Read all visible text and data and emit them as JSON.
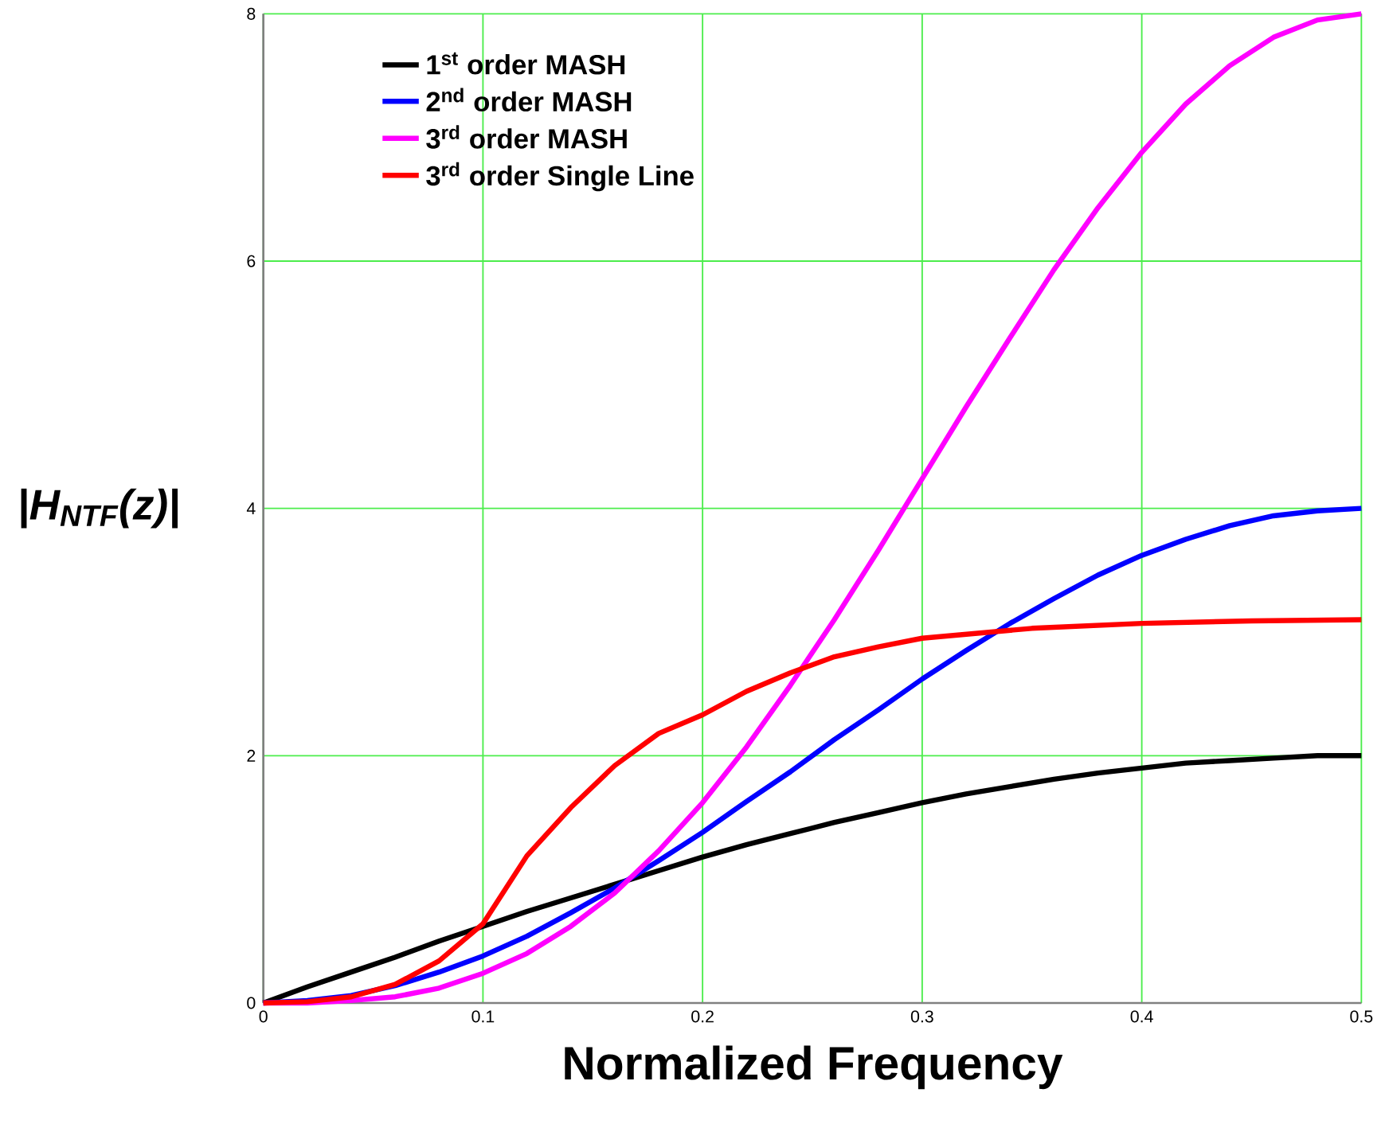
{
  "chart_data": {
    "type": "line",
    "xlabel": "Normalized Frequency",
    "ylabel": "|H$_{NTF}$(z)|",
    "x": [
      0,
      0.02,
      0.04,
      0.06,
      0.08,
      0.1,
      0.12,
      0.14,
      0.16,
      0.18,
      0.2,
      0.22,
      0.24,
      0.26,
      0.28,
      0.3,
      0.32,
      0.34,
      0.36,
      0.38,
      0.4,
      0.42,
      0.44,
      0.46,
      0.48,
      0.5
    ],
    "series": [
      {
        "name": "1$^{st}$ order MASH",
        "color": "#000000",
        "values": [
          0,
          0.13,
          0.25,
          0.37,
          0.5,
          0.62,
          0.74,
          0.85,
          0.96,
          1.07,
          1.18,
          1.28,
          1.37,
          1.46,
          1.54,
          1.62,
          1.69,
          1.75,
          1.81,
          1.86,
          1.9,
          1.94,
          1.96,
          1.98,
          2.0,
          2.0
        ]
      },
      {
        "name": "2$^{nd}$ order MASH",
        "color": "#0000ff",
        "values": [
          0,
          0.02,
          0.06,
          0.14,
          0.25,
          0.38,
          0.54,
          0.73,
          0.93,
          1.15,
          1.38,
          1.63,
          1.87,
          2.13,
          2.37,
          2.62,
          2.85,
          3.07,
          3.27,
          3.46,
          3.62,
          3.75,
          3.86,
          3.94,
          3.98,
          4.0
        ]
      },
      {
        "name": "3$^{rd}$ order MASH",
        "color": "#ff00ff",
        "values": [
          0,
          0.0,
          0.02,
          0.05,
          0.12,
          0.24,
          0.4,
          0.62,
          0.89,
          1.23,
          1.62,
          2.07,
          2.57,
          3.1,
          3.66,
          4.24,
          4.82,
          5.38,
          5.93,
          6.43,
          6.88,
          7.27,
          7.58,
          7.81,
          7.95,
          8.0
        ]
      },
      {
        "name": "3$^{rd}$ order Single Line",
        "color": "#ff0000",
        "x": [
          0,
          0.02,
          0.04,
          0.06,
          0.08,
          0.1,
          0.12,
          0.14,
          0.16,
          0.18,
          0.2,
          0.22,
          0.24,
          0.26,
          0.28,
          0.3,
          0.35,
          0.4,
          0.45,
          0.5
        ],
        "values": [
          0,
          0.01,
          0.05,
          0.15,
          0.34,
          0.64,
          1.19,
          1.58,
          1.92,
          2.18,
          2.33,
          2.52,
          2.67,
          2.8,
          2.88,
          2.95,
          3.03,
          3.07,
          3.09,
          3.1
        ]
      }
    ],
    "xlim": [
      0,
      0.5
    ],
    "ylim": [
      0,
      8
    ],
    "xticks": [
      0,
      0.1,
      0.2,
      0.3,
      0.4,
      0.5
    ],
    "yticks": [
      0,
      2,
      4,
      6,
      8
    ],
    "grid": true,
    "legend": "top left",
    "marker": "none",
    "line_style": "solid"
  }
}
